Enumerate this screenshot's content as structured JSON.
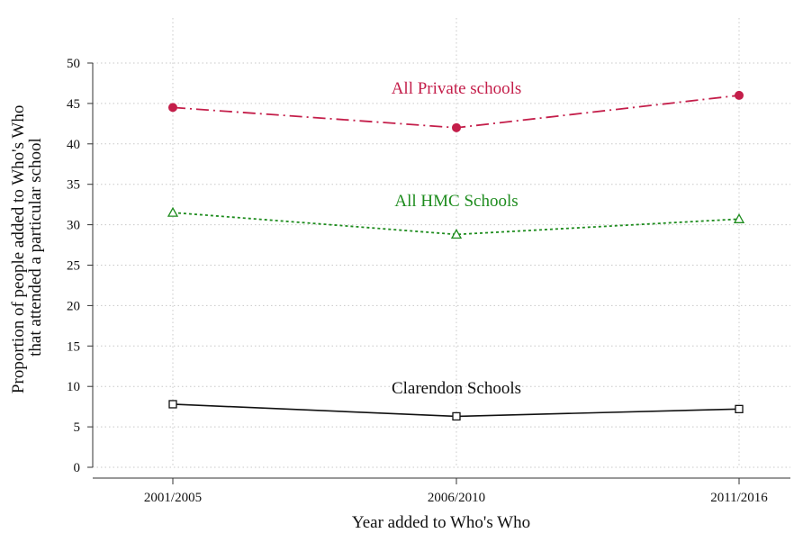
{
  "chart_data": {
    "type": "line",
    "title": "",
    "xlabel": "Year added to Who's Who",
    "ylabel_lines": [
      "Proportion of people added to Who's Who",
      "that attended a particular school"
    ],
    "categories": [
      "2001/2005",
      "2006/2010",
      "2011/2016"
    ],
    "yticks": [
      0,
      5,
      10,
      15,
      20,
      25,
      30,
      35,
      40,
      45,
      50
    ],
    "ylim": [
      0,
      50
    ],
    "grid": true,
    "series": [
      {
        "name": "All Private schools",
        "values": [
          44.5,
          42.0,
          46.0
        ],
        "color": "#c41e4a",
        "line_style": "dash-dot",
        "marker": "filled-circle"
      },
      {
        "name": "All HMC Schools",
        "values": [
          31.5,
          28.8,
          30.7
        ],
        "color": "#1e8c1e",
        "line_style": "dotted",
        "marker": "hollow-triangle"
      },
      {
        "name": "Clarendon Schools",
        "values": [
          7.8,
          6.3,
          7.2
        ],
        "color": "#111111",
        "line_style": "solid",
        "marker": "hollow-square"
      }
    ]
  }
}
